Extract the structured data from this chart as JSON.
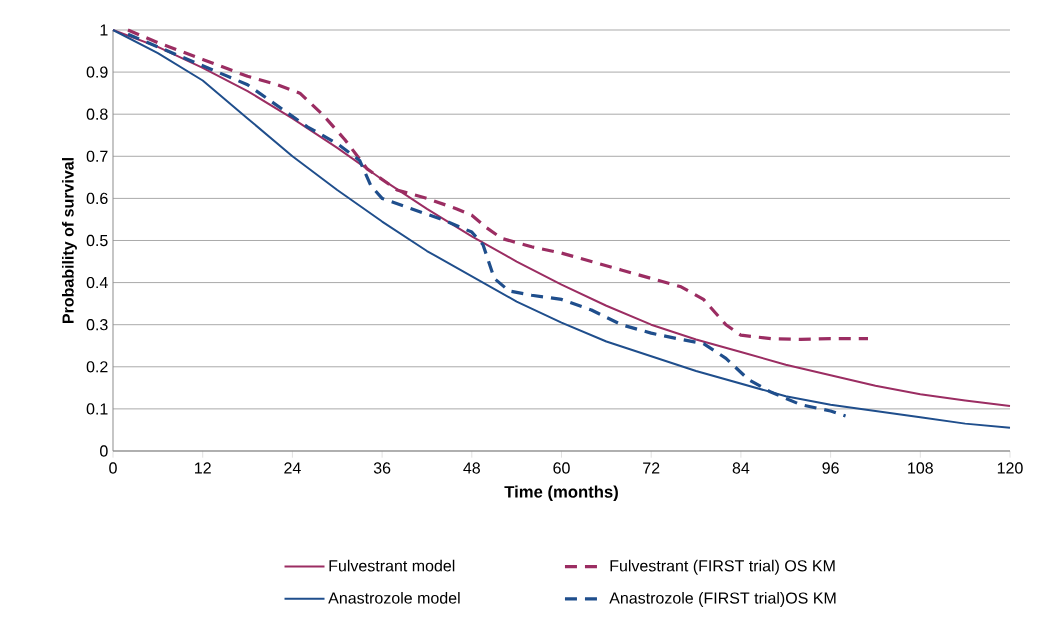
{
  "chart_data": {
    "type": "line",
    "xlabel": "Time (months)",
    "ylabel": "Probability of survival",
    "xlim": [
      0,
      120
    ],
    "ylim": [
      0,
      1
    ],
    "xticks": [
      0,
      12,
      24,
      36,
      48,
      60,
      72,
      84,
      96,
      108,
      120
    ],
    "yticks": [
      0,
      0.1,
      0.2,
      0.3,
      0.4,
      0.5,
      0.6,
      0.7,
      0.8,
      0.9,
      1
    ],
    "grid": "y",
    "legend": "bottom",
    "series": [
      {
        "name": "Fulvestrant model",
        "color": "#9b2d62",
        "line_style": "solid",
        "x": [
          0,
          6,
          12,
          18,
          24,
          30,
          36,
          42,
          48,
          54,
          60,
          66,
          72,
          78,
          84,
          90,
          96,
          102,
          108,
          114,
          120
        ],
        "values": [
          1,
          0.96,
          0.91,
          0.855,
          0.79,
          0.72,
          0.645,
          0.575,
          0.51,
          0.45,
          0.395,
          0.345,
          0.3,
          0.265,
          0.235,
          0.205,
          0.18,
          0.155,
          0.135,
          0.12,
          0.107
        ]
      },
      {
        "name": "Fulvestrant (FIRST trial) OS KM",
        "color": "#9b2d62",
        "line_style": "dashed",
        "x": [
          2,
          6,
          12,
          18,
          22,
          25,
          28,
          31,
          34,
          38,
          42,
          46,
          48,
          50,
          52,
          56,
          60,
          64,
          68,
          72,
          76,
          79,
          82,
          84,
          88,
          92,
          96,
          101
        ],
        "values": [
          1,
          0.97,
          0.93,
          0.89,
          0.87,
          0.85,
          0.8,
          0.74,
          0.67,
          0.62,
          0.6,
          0.575,
          0.56,
          0.53,
          0.505,
          0.485,
          0.47,
          0.45,
          0.43,
          0.41,
          0.39,
          0.36,
          0.3,
          0.275,
          0.267,
          0.265,
          0.267,
          0.267
        ]
      },
      {
        "name": "Anastrozole model",
        "color": "#1f4e8c",
        "line_style": "solid",
        "x": [
          0,
          6,
          12,
          18,
          24,
          30,
          36,
          42,
          48,
          54,
          60,
          66,
          72,
          78,
          84,
          90,
          96,
          102,
          108,
          114,
          120
        ],
        "values": [
          1,
          0.945,
          0.88,
          0.79,
          0.7,
          0.62,
          0.545,
          0.475,
          0.415,
          0.355,
          0.305,
          0.26,
          0.225,
          0.19,
          0.16,
          0.13,
          0.11,
          0.095,
          0.08,
          0.065,
          0.055
        ]
      },
      {
        "name": "Anastrozole (FIRST trial)OS KM",
        "color": "#1f4e8c",
        "line_style": "dashed",
        "x": [
          2,
          6,
          12,
          18,
          22,
          26,
          30,
          33,
          34.5,
          36,
          40,
          44,
          48,
          49.5,
          51,
          53,
          56,
          60,
          64,
          68,
          72,
          76,
          79,
          82,
          85,
          88,
          92,
          96,
          98
        ],
        "values": [
          0.99,
          0.96,
          0.915,
          0.87,
          0.82,
          0.77,
          0.73,
          0.69,
          0.63,
          0.6,
          0.575,
          0.55,
          0.52,
          0.49,
          0.41,
          0.38,
          0.37,
          0.36,
          0.335,
          0.3,
          0.28,
          0.265,
          0.255,
          0.22,
          0.17,
          0.14,
          0.11,
          0.095,
          0.083
        ]
      }
    ]
  }
}
